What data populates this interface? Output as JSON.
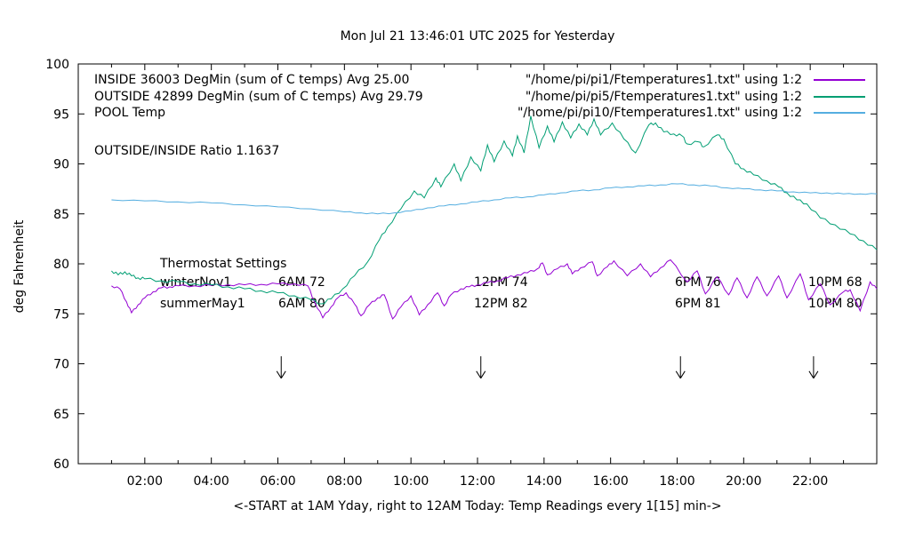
{
  "header": {
    "title": "Mon Jul 21 13:46:01 UTC 2025 for Yesterday"
  },
  "legend": {
    "entries": [
      {
        "label": "INSIDE 36003 DegMin (sum of C temps) Avg 25.00",
        "file": "\"/home/pi/pi1/Ftemperatures1.txt\" using 1:2",
        "color": "#9400d3"
      },
      {
        "label": "OUTSIDE 42899 DegMin (sum of C temps) Avg 29.79",
        "file": "\"/home/pi/pi5/Ftemperatures1.txt\" using 1:2",
        "color": "#009e73"
      },
      {
        "label": "POOL Temp",
        "file": "\"/home/pi/pi10/Ftemperatures1.txt\" using 1:2",
        "color": "#55aee0"
      }
    ]
  },
  "annotations": {
    "ratio": "OUTSIDE/INSIDE Ratio 1.1637"
  },
  "thermostat": {
    "title": "Thermostat Settings",
    "winter": {
      "name": "winterNov1",
      "s1": "6AM 72",
      "s2": "12PM 74",
      "s3": "6PM 76",
      "s4": "10PM 68"
    },
    "summer": {
      "name": "summerMay1",
      "s1": "6AM 80",
      "s2": "12PM 82",
      "s3": "6PM 81",
      "s4": "10PM 80"
    }
  },
  "axes": {
    "y_label": "deg Fahrenheit",
    "x_label": "<-START at 1AM Yday, right to 12AM Today:  Temp Readings every 1[15] min->",
    "x_ticks": [
      "02:00",
      "04:00",
      "06:00",
      "08:00",
      "10:00",
      "12:00",
      "14:00",
      "16:00",
      "18:00",
      "20:00",
      "22:00"
    ],
    "y_ticks": [
      60,
      65,
      70,
      75,
      80,
      85,
      90,
      95,
      100
    ]
  },
  "chart_data": {
    "type": "line",
    "title": "Mon Jul 21 13:46:01 UTC 2025 for Yesterday",
    "xlabel": "<-START at 1AM Yday, right to 12AM Today:  Temp Readings every 1[15] min->",
    "ylabel": "deg Fahrenheit",
    "x_unit": "hour of yesterday (1 = 1AM yesterday, 24 = 12AM today)",
    "xlim": [
      0,
      24
    ],
    "ylim": [
      60,
      100
    ],
    "grid": false,
    "legend_position": "top-inside",
    "series": [
      {
        "name": "INSIDE",
        "color": "#9400d3",
        "jitter": 0.1,
        "points": [
          [
            1,
            77.8
          ],
          [
            1.25,
            77.5
          ],
          [
            1.45,
            76.2
          ],
          [
            1.6,
            75.1
          ],
          [
            1.8,
            75.9
          ],
          [
            2,
            76.6
          ],
          [
            2.25,
            77.2
          ],
          [
            2.5,
            77.6
          ],
          [
            2.75,
            77.7
          ],
          [
            3,
            77.8
          ],
          [
            3.5,
            77.8
          ],
          [
            4,
            77.85
          ],
          [
            4.5,
            77.9
          ],
          [
            5,
            77.9
          ],
          [
            5.5,
            77.95
          ],
          [
            6,
            78
          ],
          [
            6.5,
            78
          ],
          [
            6.9,
            77.8
          ],
          [
            7.1,
            76.2
          ],
          [
            7.35,
            74.6
          ],
          [
            7.6,
            75.7
          ],
          [
            7.8,
            76.6
          ],
          [
            8.05,
            77.1
          ],
          [
            8.3,
            76
          ],
          [
            8.5,
            74.8
          ],
          [
            8.75,
            75.9
          ],
          [
            9,
            76.6
          ],
          [
            9.2,
            76.9
          ],
          [
            9.45,
            74.5
          ],
          [
            9.7,
            75.7
          ],
          [
            10,
            76.8
          ],
          [
            10.25,
            74.9
          ],
          [
            10.5,
            75.9
          ],
          [
            10.8,
            77.1
          ],
          [
            11,
            75.8
          ],
          [
            11.2,
            76.9
          ],
          [
            11.5,
            77.5
          ],
          [
            11.75,
            77.7
          ],
          [
            12,
            77.9
          ],
          [
            12.3,
            78.1
          ],
          [
            12.6,
            78.3
          ],
          [
            12.9,
            78.6
          ],
          [
            13.2,
            78.9
          ],
          [
            13.5,
            79.1
          ],
          [
            13.8,
            79.5
          ],
          [
            13.95,
            80.1
          ],
          [
            14.1,
            78.9
          ],
          [
            14.4,
            79.5
          ],
          [
            14.7,
            80
          ],
          [
            14.85,
            79
          ],
          [
            15.1,
            79.6
          ],
          [
            15.45,
            80.2
          ],
          [
            15.6,
            78.8
          ],
          [
            15.9,
            79.7
          ],
          [
            16.1,
            80.3
          ],
          [
            16.5,
            78.8
          ],
          [
            16.9,
            80
          ],
          [
            17.2,
            78.7
          ],
          [
            17.5,
            79.6
          ],
          [
            17.8,
            80.4
          ],
          [
            18.3,
            78.2
          ],
          [
            18.6,
            79.3
          ],
          [
            18.85,
            77
          ],
          [
            19.2,
            78.7
          ],
          [
            19.55,
            76.9
          ],
          [
            19.8,
            78.6
          ],
          [
            20.1,
            76.6
          ],
          [
            20.4,
            78.7
          ],
          [
            20.7,
            76.8
          ],
          [
            21.05,
            78.8
          ],
          [
            21.3,
            76.6
          ],
          [
            21.7,
            79
          ],
          [
            21.95,
            76.4
          ],
          [
            22.3,
            78
          ],
          [
            22.6,
            75.9
          ],
          [
            23,
            77.2
          ],
          [
            23.2,
            77.4
          ],
          [
            23.5,
            75.3
          ],
          [
            23.8,
            78.2
          ],
          [
            24,
            77.5
          ]
        ]
      },
      {
        "name": "OUTSIDE",
        "color": "#009e73",
        "jitter": 0.13,
        "points": [
          [
            1,
            79.3
          ],
          [
            1.2,
            78.9
          ],
          [
            1.4,
            79.2
          ],
          [
            1.6,
            78.8
          ],
          [
            1.8,
            78.6
          ],
          [
            2,
            78.5
          ],
          [
            2.5,
            78.3
          ],
          [
            3,
            78.2
          ],
          [
            3.5,
            78
          ],
          [
            4,
            77.9
          ],
          [
            4.5,
            77.7
          ],
          [
            5,
            77.5
          ],
          [
            5.5,
            77.3
          ],
          [
            6,
            77.1
          ],
          [
            6.5,
            76.8
          ],
          [
            7,
            76.4
          ],
          [
            7.3,
            76
          ],
          [
            7.6,
            76.5
          ],
          [
            7.95,
            77.5
          ],
          [
            8.3,
            78.8
          ],
          [
            8.7,
            80.2
          ],
          [
            9.05,
            82.4
          ],
          [
            9.3,
            83.7
          ],
          [
            9.7,
            85.5
          ],
          [
            10.1,
            87.3
          ],
          [
            10.4,
            86.6
          ],
          [
            10.75,
            88.6
          ],
          [
            10.9,
            87.7
          ],
          [
            11.3,
            90
          ],
          [
            11.5,
            88.3
          ],
          [
            11.8,
            90.7
          ],
          [
            12.1,
            89.3
          ],
          [
            12.3,
            91.9
          ],
          [
            12.5,
            90.2
          ],
          [
            12.8,
            92.3
          ],
          [
            13.05,
            90.8
          ],
          [
            13.2,
            92.8
          ],
          [
            13.4,
            91.1
          ],
          [
            13.6,
            94.8
          ],
          [
            13.85,
            91.6
          ],
          [
            14.1,
            93.8
          ],
          [
            14.3,
            92.2
          ],
          [
            14.55,
            94.2
          ],
          [
            14.8,
            92.6
          ],
          [
            15.05,
            94
          ],
          [
            15.3,
            92.9
          ],
          [
            15.5,
            94.5
          ],
          [
            15.7,
            92.9
          ],
          [
            16.05,
            94.1
          ],
          [
            16.4,
            92.5
          ],
          [
            16.75,
            91.1
          ],
          [
            17.15,
            93.9
          ],
          [
            17.35,
            94.1
          ],
          [
            17.6,
            93.2
          ],
          [
            17.9,
            93
          ],
          [
            18.15,
            92.8
          ],
          [
            18.3,
            92
          ],
          [
            18.65,
            92.2
          ],
          [
            18.8,
            91.7
          ],
          [
            19.2,
            92.9
          ],
          [
            19.4,
            92.5
          ],
          [
            19.75,
            90
          ],
          [
            20,
            89.5
          ],
          [
            20.3,
            88.9
          ],
          [
            20.7,
            88.3
          ],
          [
            21.05,
            87.7
          ],
          [
            21.3,
            87.1
          ],
          [
            21.6,
            86.4
          ],
          [
            21.9,
            86
          ],
          [
            22.3,
            84.6
          ],
          [
            22.75,
            83.9
          ],
          [
            23.2,
            83
          ],
          [
            23.6,
            82.3
          ],
          [
            24,
            81.4
          ]
        ]
      },
      {
        "name": "POOL",
        "color": "#55aee0",
        "jitter": 0.05,
        "points": [
          [
            1,
            86.4
          ],
          [
            2,
            86.3
          ],
          [
            3,
            86.2
          ],
          [
            4,
            86.1
          ],
          [
            5,
            85.9
          ],
          [
            6,
            85.7
          ],
          [
            7,
            85.5
          ],
          [
            8,
            85.2
          ],
          [
            8.5,
            85.1
          ],
          [
            9,
            85
          ],
          [
            9.5,
            85.1
          ],
          [
            10,
            85.3
          ],
          [
            10.5,
            85.6
          ],
          [
            11,
            85.8
          ],
          [
            11.5,
            86
          ],
          [
            12,
            86.2
          ],
          [
            12.5,
            86.4
          ],
          [
            13,
            86.6
          ],
          [
            13.5,
            86.7
          ],
          [
            14,
            86.9
          ],
          [
            14.5,
            87.1
          ],
          [
            15,
            87.3
          ],
          [
            15.5,
            87.4
          ],
          [
            16,
            87.6
          ],
          [
            16.5,
            87.7
          ],
          [
            17,
            87.8
          ],
          [
            17.5,
            87.9
          ],
          [
            18,
            88
          ],
          [
            18.5,
            87.9
          ],
          [
            19,
            87.8
          ],
          [
            19.5,
            87.6
          ],
          [
            20,
            87.5
          ],
          [
            20.5,
            87.4
          ],
          [
            21,
            87.3
          ],
          [
            21.5,
            87.2
          ],
          [
            22,
            87.1
          ],
          [
            22.5,
            87.1
          ],
          [
            23,
            87
          ],
          [
            23.5,
            87
          ],
          [
            24,
            87
          ]
        ]
      }
    ],
    "arrows": {
      "times": [
        6.1,
        12.1,
        18.1,
        22.1
      ],
      "from_value": 70.75,
      "to_value": 68.55
    }
  }
}
